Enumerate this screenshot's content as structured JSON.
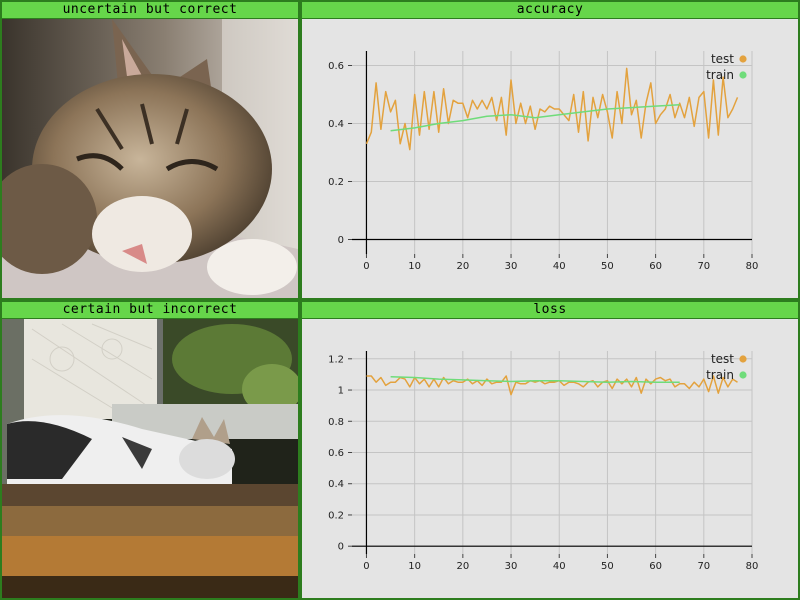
{
  "panels": {
    "top_left_title": "uncertain but correct",
    "bottom_left_title": "certain but incorrect",
    "top_right_title": "accuracy",
    "bottom_right_title": "loss"
  },
  "images": {
    "top_left": "photo-tabby-kitten-sleeping",
    "bottom_left": "photo-cat-sleeping-by-window"
  },
  "colors": {
    "test": "#e3a23e",
    "train": "#6fdc7a",
    "title_bar": "#66d64a",
    "border": "#2d7d1e"
  },
  "chart_data": [
    {
      "type": "line",
      "title": "accuracy",
      "xlim": [
        -3,
        80
      ],
      "ylim": [
        -0.05,
        0.65
      ],
      "xticks": [
        0,
        10,
        20,
        30,
        40,
        50,
        60,
        70,
        80
      ],
      "yticks": [
        0,
        0.2,
        0.4,
        0.6
      ],
      "ytick_labels": [
        "0",
        "0.2",
        "0.4",
        "0.6"
      ],
      "grid": true,
      "legend": "top-right",
      "series": [
        {
          "name": "test",
          "color": "#e3a23e",
          "x": [
            0,
            1,
            2,
            3,
            4,
            5,
            6,
            7,
            8,
            9,
            10,
            11,
            12,
            13,
            14,
            15,
            16,
            17,
            18,
            19,
            20,
            21,
            22,
            23,
            24,
            25,
            26,
            27,
            28,
            29,
            30,
            31,
            32,
            33,
            34,
            35,
            36,
            37,
            38,
            39,
            40,
            41,
            42,
            43,
            44,
            45,
            46,
            47,
            48,
            49,
            50,
            51,
            52,
            53,
            54,
            55,
            56,
            57,
            58,
            59,
            60,
            61,
            62,
            63,
            64,
            65,
            66,
            67,
            68,
            69,
            70,
            71,
            72,
            73,
            74,
            75,
            76,
            77
          ],
          "y": [
            0.33,
            0.37,
            0.54,
            0.38,
            0.51,
            0.44,
            0.48,
            0.33,
            0.4,
            0.31,
            0.5,
            0.36,
            0.51,
            0.38,
            0.51,
            0.37,
            0.52,
            0.4,
            0.48,
            0.47,
            0.47,
            0.42,
            0.48,
            0.45,
            0.48,
            0.45,
            0.49,
            0.41,
            0.49,
            0.36,
            0.55,
            0.4,
            0.47,
            0.4,
            0.46,
            0.38,
            0.45,
            0.44,
            0.46,
            0.45,
            0.45,
            0.43,
            0.41,
            0.5,
            0.37,
            0.51,
            0.34,
            0.49,
            0.42,
            0.5,
            0.44,
            0.35,
            0.51,
            0.4,
            0.59,
            0.43,
            0.48,
            0.35,
            0.47,
            0.54,
            0.4,
            0.43,
            0.45,
            0.5,
            0.42,
            0.47,
            0.42,
            0.49,
            0.39,
            0.49,
            0.51,
            0.35,
            0.55,
            0.36,
            0.56,
            0.42,
            0.45,
            0.49
          ]
        },
        {
          "name": "train",
          "color": "#6fdc7a",
          "x": [
            5,
            10,
            15,
            20,
            25,
            30,
            35,
            40,
            45,
            50,
            55,
            60,
            65
          ],
          "y": [
            0.375,
            0.385,
            0.4,
            0.41,
            0.425,
            0.43,
            0.42,
            0.43,
            0.44,
            0.45,
            0.455,
            0.46,
            0.465
          ]
        }
      ]
    },
    {
      "type": "line",
      "title": "loss",
      "xlim": [
        -3,
        80
      ],
      "ylim": [
        -0.05,
        1.25
      ],
      "xticks": [
        0,
        10,
        20,
        30,
        40,
        50,
        60,
        70,
        80
      ],
      "yticks": [
        0,
        0.2,
        0.4,
        0.6,
        0.8,
        1,
        1.2
      ],
      "ytick_labels": [
        "0",
        "0.2",
        "0.4",
        "0.6",
        "0.8",
        "1",
        "1.2"
      ],
      "grid": true,
      "legend": "top-right",
      "series": [
        {
          "name": "test",
          "color": "#e3a23e",
          "x": [
            0,
            1,
            2,
            3,
            4,
            5,
            6,
            7,
            8,
            9,
            10,
            11,
            12,
            13,
            14,
            15,
            16,
            17,
            18,
            19,
            20,
            21,
            22,
            23,
            24,
            25,
            26,
            27,
            28,
            29,
            30,
            31,
            32,
            33,
            34,
            35,
            36,
            37,
            38,
            39,
            40,
            41,
            42,
            43,
            44,
            45,
            46,
            47,
            48,
            49,
            50,
            51,
            52,
            53,
            54,
            55,
            56,
            57,
            58,
            59,
            60,
            61,
            62,
            63,
            64,
            65,
            66,
            67,
            68,
            69,
            70,
            71,
            72,
            73,
            74,
            75,
            76,
            77
          ],
          "y": [
            1.09,
            1.09,
            1.05,
            1.08,
            1.03,
            1.05,
            1.05,
            1.08,
            1.07,
            1.02,
            1.08,
            1.04,
            1.07,
            1.02,
            1.07,
            1.02,
            1.08,
            1.04,
            1.06,
            1.05,
            1.05,
            1.07,
            1.04,
            1.06,
            1.03,
            1.07,
            1.04,
            1.05,
            1.05,
            1.09,
            0.97,
            1.05,
            1.04,
            1.04,
            1.06,
            1.05,
            1.06,
            1.04,
            1.05,
            1.05,
            1.06,
            1.03,
            1.05,
            1.05,
            1.04,
            1.02,
            1.05,
            1.06,
            1.02,
            1.05,
            1.06,
            1.01,
            1.07,
            1.04,
            1.07,
            1.02,
            1.08,
            0.98,
            1.07,
            1.04,
            1.07,
            1.08,
            1.06,
            1.07,
            1.02,
            1.04,
            1.04,
            1.01,
            1.05,
            1.02,
            1.07,
            0.99,
            1.09,
            0.98,
            1.08,
            1.02,
            1.07,
            1.05
          ]
        },
        {
          "name": "train",
          "color": "#6fdc7a",
          "x": [
            5,
            10,
            15,
            20,
            25,
            30,
            35,
            40,
            45,
            50,
            55,
            60,
            65
          ],
          "y": [
            1.085,
            1.08,
            1.07,
            1.065,
            1.06,
            1.055,
            1.06,
            1.06,
            1.055,
            1.05,
            1.055,
            1.05,
            1.05
          ]
        }
      ]
    }
  ]
}
